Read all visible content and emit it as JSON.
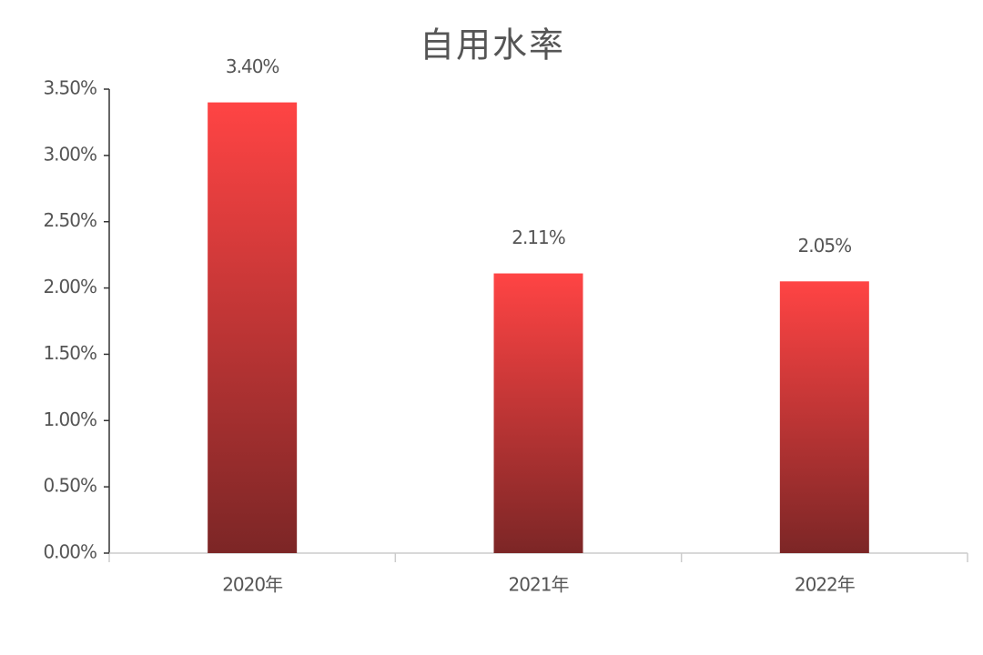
{
  "chart_data": {
    "type": "bar",
    "title": "自用水率",
    "categories": [
      "2020年",
      "2021年",
      "2022年"
    ],
    "values": [
      3.4,
      2.11,
      2.05
    ],
    "value_labels": [
      "3.40%",
      "2.11%",
      "2.05%"
    ],
    "gradient": [
      "#ff4444",
      "#7c2626"
    ],
    "ylim": [
      0,
      3.5
    ],
    "yticks": [
      {
        "value": 0,
        "label": "0.00%"
      },
      {
        "value": 0.5,
        "label": "0.50%"
      },
      {
        "value": 1,
        "label": "1.00%"
      },
      {
        "value": 1.5,
        "label": "1.50%"
      },
      {
        "value": 2,
        "label": "2.00%"
      },
      {
        "value": 2.5,
        "label": "2.50%"
      },
      {
        "value": 3,
        "label": "3.00%"
      },
      {
        "value": 3.5,
        "label": "3.50%"
      }
    ],
    "grid": false
  }
}
